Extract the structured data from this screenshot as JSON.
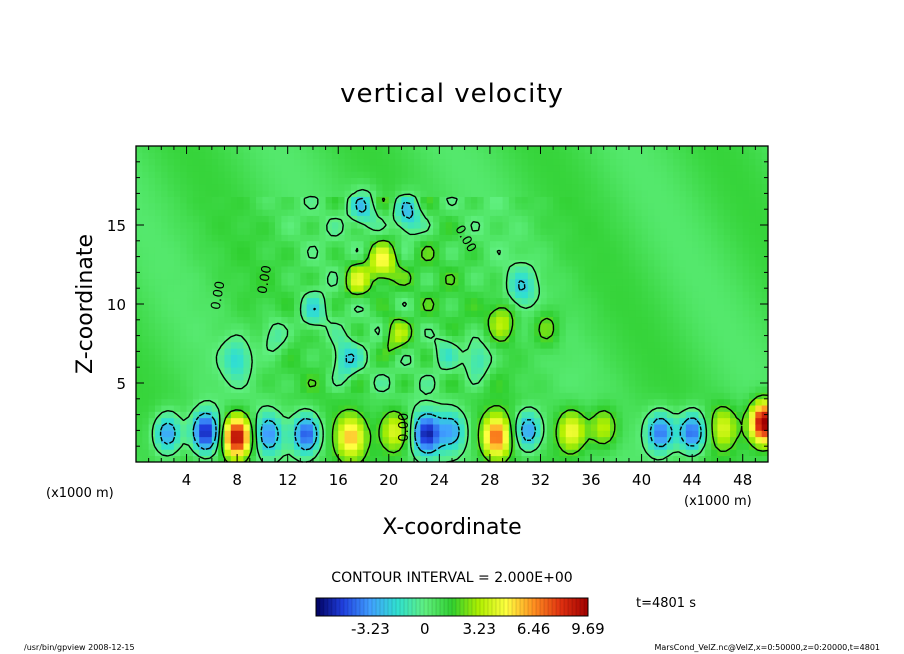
{
  "chart_data": {
    "type": "heatmap",
    "title": "vertical velocity",
    "xlabel": "X-coordinate",
    "ylabel": "Z-coordinate",
    "x_unit_left": "(x1000 m)",
    "x_unit_right": "(x1000 m)",
    "xlim": [
      0,
      50
    ],
    "ylim": [
      0,
      20
    ],
    "x_ticks": [
      "4",
      "8",
      "12",
      "16",
      "20",
      "24",
      "28",
      "32",
      "36",
      "40",
      "44",
      "48"
    ],
    "y_ticks": [
      "5",
      "10",
      "15"
    ],
    "contour_interval_text": "CONTOUR INTERVAL = 2.000E+00",
    "contour_label": "0.00",
    "colorbar_ticks": [
      "-3.23",
      "0",
      "3.23",
      "6.46",
      "9.69"
    ],
    "colorbar_range": [
      -6.46,
      9.69
    ],
    "time_label": "t=4801 s",
    "colors": [
      "#000060",
      "#2040e0",
      "#40a0ff",
      "#30e0d0",
      "#60f080",
      "#30d030",
      "#b0f000",
      "#ffff40",
      "#ff9020",
      "#e03010",
      "#a00000"
    ],
    "features": [
      {
        "x": 2.5,
        "z": 1.8,
        "w": -4.5
      },
      {
        "x": 5.5,
        "z": 1.9,
        "w": -6.5
      },
      {
        "x": 8.0,
        "z": 1.6,
        "w": 9.0
      },
      {
        "x": 10.5,
        "z": 1.8,
        "w": -4.0
      },
      {
        "x": 13.5,
        "z": 1.8,
        "w": -5.5
      },
      {
        "x": 17.0,
        "z": 1.6,
        "w": 4.5
      },
      {
        "x": 20.5,
        "z": 2.0,
        "w": 3.5
      },
      {
        "x": 23.0,
        "z": 1.8,
        "w": -6.0
      },
      {
        "x": 25.0,
        "z": 2.0,
        "w": -3.5
      },
      {
        "x": 28.5,
        "z": 1.6,
        "w": 6.0
      },
      {
        "x": 31.0,
        "z": 2.0,
        "w": -4.5
      },
      {
        "x": 34.5,
        "z": 2.0,
        "w": 4.0
      },
      {
        "x": 37.0,
        "z": 2.2,
        "w": 3.0
      },
      {
        "x": 41.5,
        "z": 1.9,
        "w": -5.0
      },
      {
        "x": 44.0,
        "z": 1.9,
        "w": -5.5
      },
      {
        "x": 46.5,
        "z": 2.2,
        "w": 3.0
      },
      {
        "x": 49.7,
        "z": 2.5,
        "w": 9.5
      },
      {
        "x": 8.0,
        "z": 6.5,
        "w": -2.5
      },
      {
        "x": 11.0,
        "z": 8.0,
        "w": -2.0
      },
      {
        "x": 14.0,
        "z": 9.5,
        "w": -2.5
      },
      {
        "x": 17.5,
        "z": 11.5,
        "w": 3.0
      },
      {
        "x": 19.5,
        "z": 12.5,
        "w": 3.5
      },
      {
        "x": 18.0,
        "z": 16.0,
        "w": -3.0
      },
      {
        "x": 21.5,
        "z": 15.5,
        "w": -4.0
      },
      {
        "x": 16.5,
        "z": 6.5,
        "w": -3.0
      },
      {
        "x": 20.5,
        "z": 8.0,
        "w": 2.5
      },
      {
        "x": 27.0,
        "z": 6.5,
        "w": -3.0
      },
      {
        "x": 29.0,
        "z": 9.0,
        "w": 2.5
      },
      {
        "x": 30.5,
        "z": 11.0,
        "w": -2.5
      },
      {
        "x": 32.5,
        "z": 8.5,
        "w": 2.0
      },
      {
        "x": 24.5,
        "z": 7.0,
        "w": -2.0
      }
    ]
  },
  "footer": {
    "left": "/usr/bin/gpview   2008-12-15",
    "right": "MarsCond_VelZ.nc@VelZ,x=0:50000,z=0:20000,t=4801"
  }
}
